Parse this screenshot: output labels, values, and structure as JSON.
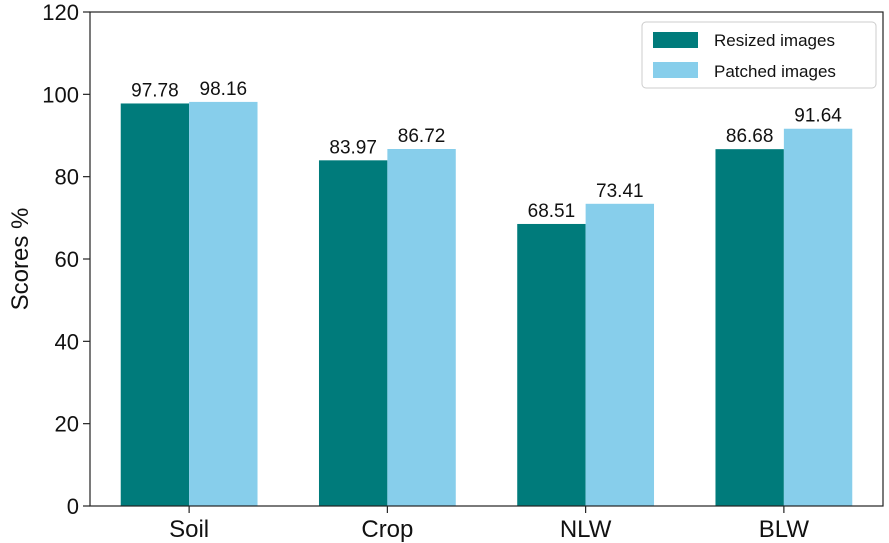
{
  "chart_data": {
    "type": "bar",
    "title": "",
    "xlabel": "",
    "ylabel": "Scores %",
    "categories": [
      "Soil",
      "Crop",
      "NLW",
      "BLW"
    ],
    "series": [
      {
        "name": "Resized images",
        "color": "#007b7b",
        "values": [
          97.78,
          83.97,
          68.51,
          86.68
        ],
        "labels": [
          "97.78",
          "83.97",
          "68.51",
          "86.68"
        ]
      },
      {
        "name": "Patched images",
        "color": "#87ceeb",
        "values": [
          98.16,
          86.72,
          73.41,
          91.64
        ],
        "labels": [
          "98.16",
          "86.72",
          "73.41",
          "91.64"
        ]
      }
    ],
    "ylim": [
      0,
      120
    ],
    "yticks": [
      "0",
      "20",
      "40",
      "60",
      "80",
      "100",
      "120"
    ],
    "grid": false,
    "legend_position": "top-right"
  }
}
